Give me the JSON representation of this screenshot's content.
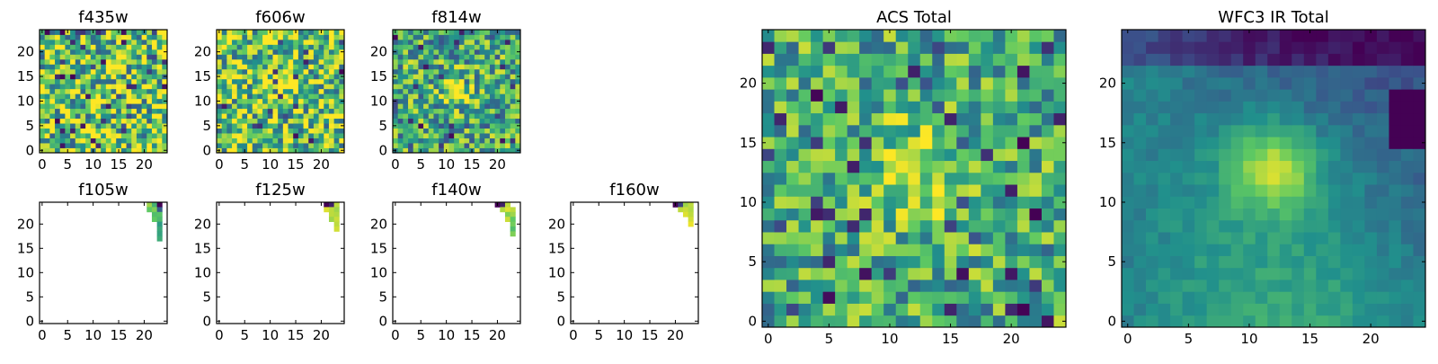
{
  "figure": {
    "background": "#ffffff",
    "colormap": "viridis",
    "colormap_stops": [
      "#440154",
      "#3b528b",
      "#21908c",
      "#5ec962",
      "#fde725"
    ]
  },
  "chart_data": [
    {
      "type": "heatmap",
      "title": "f435w",
      "grid_size": 25,
      "xticks": [
        0,
        5,
        10,
        15,
        20
      ],
      "yticks": [
        0,
        5,
        10,
        15,
        20
      ],
      "xlim": [
        0,
        25
      ],
      "ylim": [
        0,
        25
      ],
      "grid": false,
      "pattern": "noise",
      "noise": 0.45,
      "base": 0.75,
      "source": null
    },
    {
      "type": "heatmap",
      "title": "f606w",
      "grid_size": 25,
      "xticks": [
        0,
        5,
        10,
        15,
        20
      ],
      "yticks": [
        0,
        5,
        10,
        15,
        20
      ],
      "xlim": [
        0,
        25
      ],
      "ylim": [
        0,
        25
      ],
      "grid": false,
      "pattern": "noise",
      "noise": 0.4,
      "base": 0.72,
      "source": {
        "x": 12,
        "y": 13,
        "sigma": 2.5,
        "amp": 0.2
      }
    },
    {
      "type": "heatmap",
      "title": "f814w",
      "grid_size": 25,
      "xticks": [
        0,
        5,
        10,
        15,
        20
      ],
      "yticks": [
        0,
        5,
        10,
        15,
        20
      ],
      "xlim": [
        0,
        25
      ],
      "ylim": [
        0,
        25
      ],
      "grid": false,
      "pattern": "noise",
      "noise": 0.35,
      "base": 0.6,
      "source": {
        "x": 12,
        "y": 12,
        "sigma": 2.2,
        "amp": 0.35
      }
    },
    {
      "type": "heatmap",
      "title": "f105w",
      "grid_size": 25,
      "xticks": [
        0,
        5,
        10,
        15,
        20
      ],
      "yticks": [
        0,
        5,
        10,
        15,
        20
      ],
      "xlim": [
        0,
        25
      ],
      "ylim": [
        0,
        25
      ],
      "grid": false,
      "pattern": "corner",
      "cells": [
        [
          21,
          24,
          0.85
        ],
        [
          22,
          24,
          0.65
        ],
        [
          23,
          24,
          0.0
        ],
        [
          21,
          23,
          0.75
        ],
        [
          22,
          23,
          0.8
        ],
        [
          23,
          23,
          0.3
        ],
        [
          22,
          22,
          0.7
        ],
        [
          23,
          22,
          0.72
        ],
        [
          22,
          21,
          0.75
        ],
        [
          23,
          21,
          0.68
        ],
        [
          23,
          20,
          0.55
        ],
        [
          23,
          19,
          0.6
        ],
        [
          23,
          18,
          0.58
        ],
        [
          23,
          17,
          0.62
        ]
      ]
    },
    {
      "type": "heatmap",
      "title": "f125w",
      "grid_size": 25,
      "xticks": [
        0,
        5,
        10,
        15,
        20
      ],
      "yticks": [
        0,
        5,
        10,
        15,
        20
      ],
      "xlim": [
        0,
        25
      ],
      "ylim": [
        0,
        25
      ],
      "grid": false,
      "pattern": "corner",
      "cells": [
        [
          21,
          24,
          0.0
        ],
        [
          22,
          24,
          0.1
        ],
        [
          23,
          24,
          0.9
        ],
        [
          21,
          23,
          0.95
        ],
        [
          22,
          23,
          0.9
        ],
        [
          23,
          23,
          0.85
        ],
        [
          22,
          22,
          0.9
        ],
        [
          23,
          22,
          0.88
        ],
        [
          22,
          21,
          0.85
        ],
        [
          23,
          21,
          0.92
        ],
        [
          23,
          20,
          0.9
        ],
        [
          23,
          19,
          0.93
        ]
      ]
    },
    {
      "type": "heatmap",
      "title": "f140w",
      "grid_size": 25,
      "xticks": [
        0,
        5,
        10,
        15,
        20
      ],
      "yticks": [
        0,
        5,
        10,
        15,
        20
      ],
      "xlim": [
        0,
        25
      ],
      "ylim": [
        0,
        25
      ],
      "grid": false,
      "pattern": "corner",
      "cells": [
        [
          20,
          24,
          0.0
        ],
        [
          21,
          24,
          0.1
        ],
        [
          22,
          24,
          0.9
        ],
        [
          21,
          23,
          0.88
        ],
        [
          22,
          23,
          0.95
        ],
        [
          23,
          23,
          0.9
        ],
        [
          22,
          22,
          0.8
        ],
        [
          23,
          22,
          0.85
        ],
        [
          22,
          21,
          0.92
        ],
        [
          23,
          21,
          0.75
        ],
        [
          23,
          20,
          0.78
        ],
        [
          23,
          19,
          0.7
        ],
        [
          23,
          18,
          0.8
        ]
      ]
    },
    {
      "type": "heatmap",
      "title": "f160w",
      "grid_size": 25,
      "xticks": [
        0,
        5,
        10,
        15,
        20
      ],
      "yticks": [
        0,
        5,
        10,
        15,
        20
      ],
      "xlim": [
        0,
        25
      ],
      "ylim": [
        0,
        25
      ],
      "grid": false,
      "pattern": "corner",
      "cells": [
        [
          20,
          24,
          0.0
        ],
        [
          21,
          24,
          0.2
        ],
        [
          22,
          24,
          0.85
        ],
        [
          23,
          24,
          0.9
        ],
        [
          21,
          23,
          0.9
        ],
        [
          22,
          23,
          0.92
        ],
        [
          23,
          23,
          0.88
        ],
        [
          22,
          22,
          0.95
        ],
        [
          23,
          22,
          0.9
        ],
        [
          23,
          21,
          0.93
        ],
        [
          23,
          20,
          0.97
        ]
      ]
    },
    {
      "type": "heatmap",
      "title": "ACS Total",
      "grid_size": 25,
      "xticks": [
        0,
        5,
        10,
        15,
        20
      ],
      "yticks": [
        0,
        5,
        10,
        15,
        20
      ],
      "xlim": [
        0,
        25
      ],
      "ylim": [
        0,
        25
      ],
      "grid": false,
      "pattern": "noise",
      "noise": 0.3,
      "base": 0.62,
      "source": {
        "x": 12,
        "y": 12,
        "sigma": 3,
        "amp": 0.3
      }
    },
    {
      "type": "heatmap",
      "title": "WFC3 IR Total",
      "grid_size": 25,
      "xticks": [
        0,
        5,
        10,
        15,
        20
      ],
      "yticks": [
        0,
        5,
        10,
        15,
        20
      ],
      "xlim": [
        0,
        25
      ],
      "ylim": [
        0,
        25
      ],
      "grid": false,
      "pattern": "smooth",
      "noise": 0.06,
      "base": 0.5,
      "source": {
        "x": 12,
        "y": 13,
        "sigma": 2.6,
        "amp": 0.45
      }
    }
  ]
}
